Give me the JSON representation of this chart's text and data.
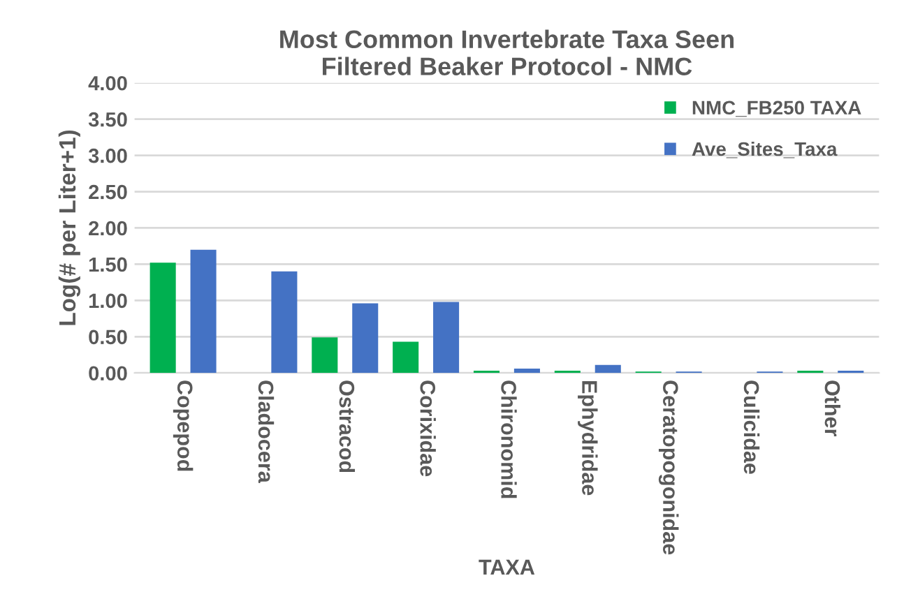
{
  "chart_data": {
    "type": "bar",
    "title": "Most Common Invertebrate Taxa Seen\nFiltered Beaker Protocol - NMC",
    "xlabel": "TAXA",
    "ylabel": "Log(# per Liter+1)",
    "categories": [
      "Copepod",
      "Cladocera",
      "Ostracod",
      "Corixidae",
      "Chironomid",
      "Ephydridae",
      "Ceratopogonidae",
      "Culicidae",
      "Other"
    ],
    "series": [
      {
        "name": "NMC_FB250 TAXA",
        "color": "#00b050",
        "values": [
          1.52,
          0.0,
          0.49,
          0.43,
          0.03,
          0.03,
          0.02,
          0.0,
          0.03
        ]
      },
      {
        "name": "Ave_Sites_Taxa",
        "color": "#4472c4",
        "values": [
          1.7,
          1.4,
          0.96,
          0.98,
          0.06,
          0.11,
          0.02,
          0.02,
          0.03
        ]
      }
    ],
    "ylim": [
      0,
      4
    ],
    "yticks": [
      {
        "value": 0,
        "label": "0.00"
      },
      {
        "value": 0.5,
        "label": "0.50"
      },
      {
        "value": 1,
        "label": "1.00"
      },
      {
        "value": 1.5,
        "label": "1.50"
      },
      {
        "value": 2,
        "label": "2.00"
      },
      {
        "value": 2.5,
        "label": "2.50"
      },
      {
        "value": 3,
        "label": "3.00"
      },
      {
        "value": 3.5,
        "label": "3.50"
      },
      {
        "value": 4,
        "label": "4.00"
      }
    ],
    "grid": "y",
    "legend": "top right"
  }
}
